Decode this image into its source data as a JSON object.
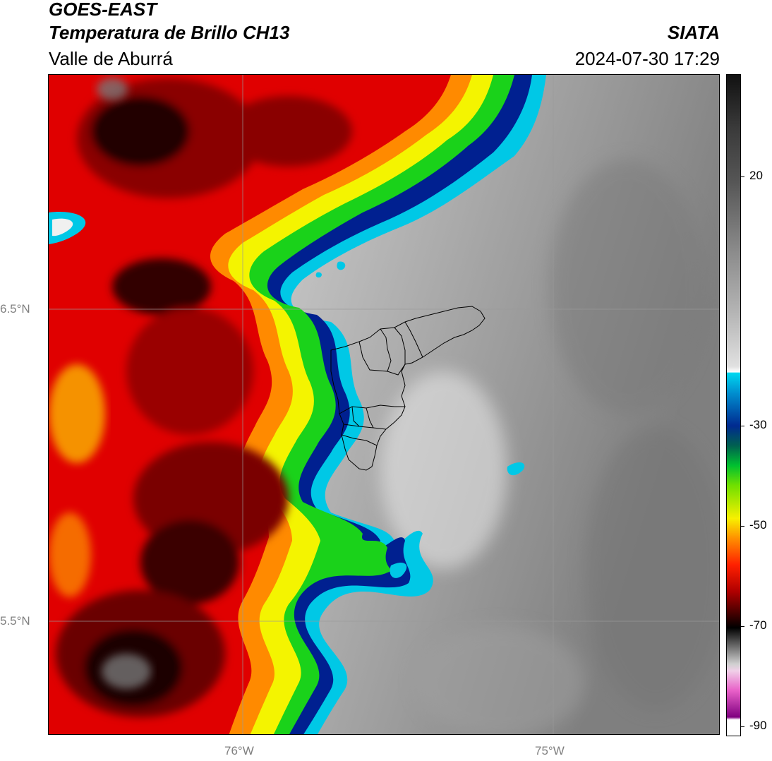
{
  "header": {
    "title_line1": "GOES-EAST",
    "title_line2": "Temperatura de Brillo CH13",
    "region": "Valle de Aburrá",
    "agency": "SIATA",
    "timestamp": "2024-07-30 17:29"
  },
  "map": {
    "product": "brightness-temperature",
    "latitude_labels": [
      "6.5°N",
      "5.5°N"
    ],
    "longitude_labels": [
      "76°W",
      "75°W"
    ],
    "gridlines": true,
    "colors": {
      "cold_dark": "#1a0000",
      "red": "#e00000",
      "orange": "#ff8a00",
      "yellow": "#f4f400",
      "green": "#1ad21a",
      "dark_blue": "#002090",
      "cyan": "#00c8e6",
      "warm_light": "#eaeaea",
      "warm_gray": "#8a8a8a",
      "border": "#000000"
    }
  },
  "colorbar": {
    "ticks": [
      {
        "value": 20,
        "label": "20"
      },
      {
        "value": -30,
        "label": "-30"
      },
      {
        "value": -50,
        "label": "-50"
      },
      {
        "value": -70,
        "label": "-70"
      },
      {
        "value": -90,
        "label": "-90"
      }
    ]
  }
}
